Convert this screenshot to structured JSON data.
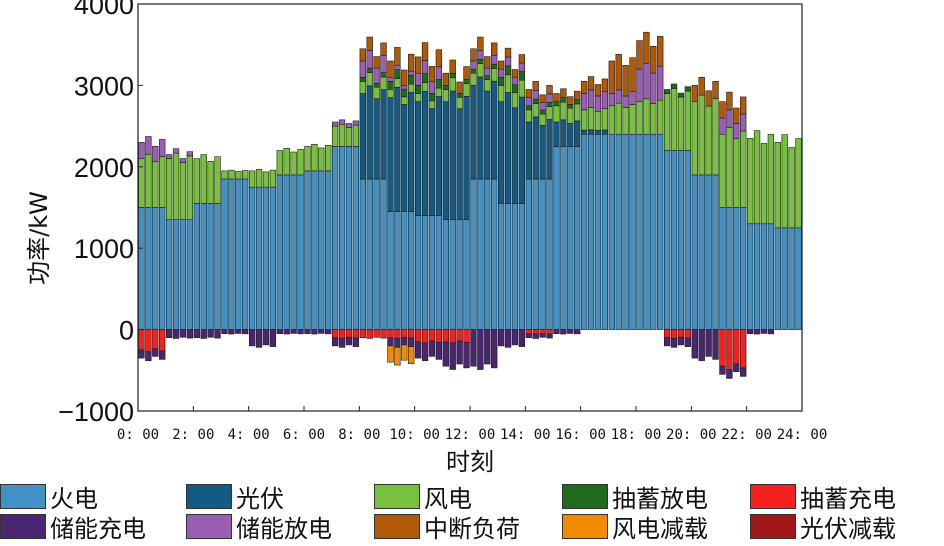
{
  "chart_data": {
    "type": "bar",
    "stacked": true,
    "title": "",
    "xlabel": "时刻",
    "ylabel": "功率/kW",
    "ylim": [
      -1000,
      4000
    ],
    "yticks": [
      "4000",
      "3000",
      "2000",
      "1000",
      "0",
      "−1000"
    ],
    "ytick_values": [
      4000,
      3000,
      2000,
      1000,
      0,
      -1000
    ],
    "xticks": [
      "0: 00",
      "2: 00",
      "4: 00",
      "6: 00",
      "8: 00",
      "10: 00",
      "12: 00",
      "14: 00",
      "16: 00",
      "18: 00",
      "20: 00",
      "22: 00",
      "24: 00"
    ],
    "xtick_hours": [
      0,
      2,
      4,
      6,
      8,
      10,
      12,
      14,
      16,
      18,
      20,
      22,
      24
    ],
    "interval_hours": 0.25,
    "n_intervals": 96,
    "hourly": {
      "火电": [
        1500,
        1350,
        1550,
        1850,
        1750,
        1900,
        1950,
        2250,
        1850,
        1450,
        1400,
        1350,
        1850,
        1550,
        1850,
        2250,
        2400,
        2400,
        2400,
        2200,
        1900,
        1500,
        1300,
        1250
      ],
      "光伏": [
        0,
        0,
        0,
        0,
        0,
        0,
        0,
        0,
        1050,
        1400,
        1400,
        1450,
        1150,
        1250,
        700,
        300,
        50,
        0,
        0,
        0,
        0,
        0,
        0,
        0
      ],
      "风电": [
        600,
        750,
        550,
        100,
        200,
        300,
        300,
        250,
        150,
        100,
        100,
        150,
        150,
        200,
        150,
        200,
        250,
        350,
        400,
        700,
        900,
        900,
        1050,
        1050
      ],
      "抽蓄放电": [
        0,
        0,
        0,
        0,
        0,
        0,
        0,
        0,
        50,
        100,
        100,
        50,
        50,
        100,
        50,
        50,
        0,
        0,
        0,
        50,
        0,
        0,
        0,
        0
      ],
      "储能放电": [
        200,
        50,
        0,
        0,
        0,
        0,
        0,
        50,
        200,
        50,
        150,
        0,
        100,
        100,
        100,
        0,
        200,
        150,
        400,
        0,
        0,
        200,
        0,
        0
      ],
      "中断负荷": [
        0,
        0,
        0,
        0,
        0,
        0,
        0,
        0,
        150,
        200,
        200,
        150,
        150,
        100,
        100,
        100,
        150,
        400,
        350,
        0,
        200,
        200,
        0,
        0
      ],
      "抽蓄充电": [
        -250,
        0,
        0,
        0,
        0,
        0,
        0,
        -100,
        -100,
        -100,
        -150,
        -150,
        0,
        0,
        -50,
        0,
        0,
        0,
        0,
        -100,
        0,
        -450,
        0,
        0
      ],
      "储能充电": [
        -100,
        -100,
        -100,
        -50,
        -200,
        -50,
        -50,
        -100,
        0,
        -100,
        -200,
        -300,
        -450,
        -200,
        -50,
        -50,
        0,
        0,
        0,
        -100,
        -350,
        -100,
        -50,
        0
      ],
      "风电减载": [
        0,
        0,
        0,
        0,
        0,
        0,
        0,
        0,
        0,
        -200,
        0,
        0,
        0,
        0,
        0,
        0,
        0,
        0,
        0,
        0,
        0,
        0,
        0,
        0
      ],
      "光伏减载": [
        0,
        0,
        0,
        0,
        0,
        0,
        0,
        0,
        0,
        0,
        0,
        0,
        0,
        0,
        0,
        0,
        0,
        0,
        0,
        0,
        0,
        0,
        0,
        0
      ]
    },
    "series": [
      {
        "name": "火电",
        "color": "#4292c6",
        "sign": "positive"
      },
      {
        "name": "光伏",
        "color": "#135a84",
        "sign": "positive"
      },
      {
        "name": "风电",
        "color": "#78c13c",
        "sign": "positive"
      },
      {
        "name": "抽蓄放电",
        "color": "#1e6b1e",
        "sign": "positive"
      },
      {
        "name": "储能放电",
        "color": "#9a5fb4",
        "sign": "positive"
      },
      {
        "name": "中断负荷",
        "color": "#b05a08",
        "sign": "positive"
      },
      {
        "name": "抽蓄充电",
        "color": "#f5211f",
        "sign": "negative"
      },
      {
        "name": "储能充电",
        "color": "#4a2670",
        "sign": "negative"
      },
      {
        "name": "风电减载",
        "color": "#f28b00",
        "sign": "negative"
      },
      {
        "name": "光伏减载",
        "color": "#a01818",
        "sign": "negative"
      }
    ],
    "legend": {
      "position": "bottom",
      "rows": [
        [
          "火电",
          "光伏",
          "风电",
          "抽蓄放电",
          "抽蓄充电"
        ],
        [
          "储能充电",
          "储能放电",
          "中断负荷",
          "风电减载",
          "光伏减载"
        ]
      ]
    }
  }
}
